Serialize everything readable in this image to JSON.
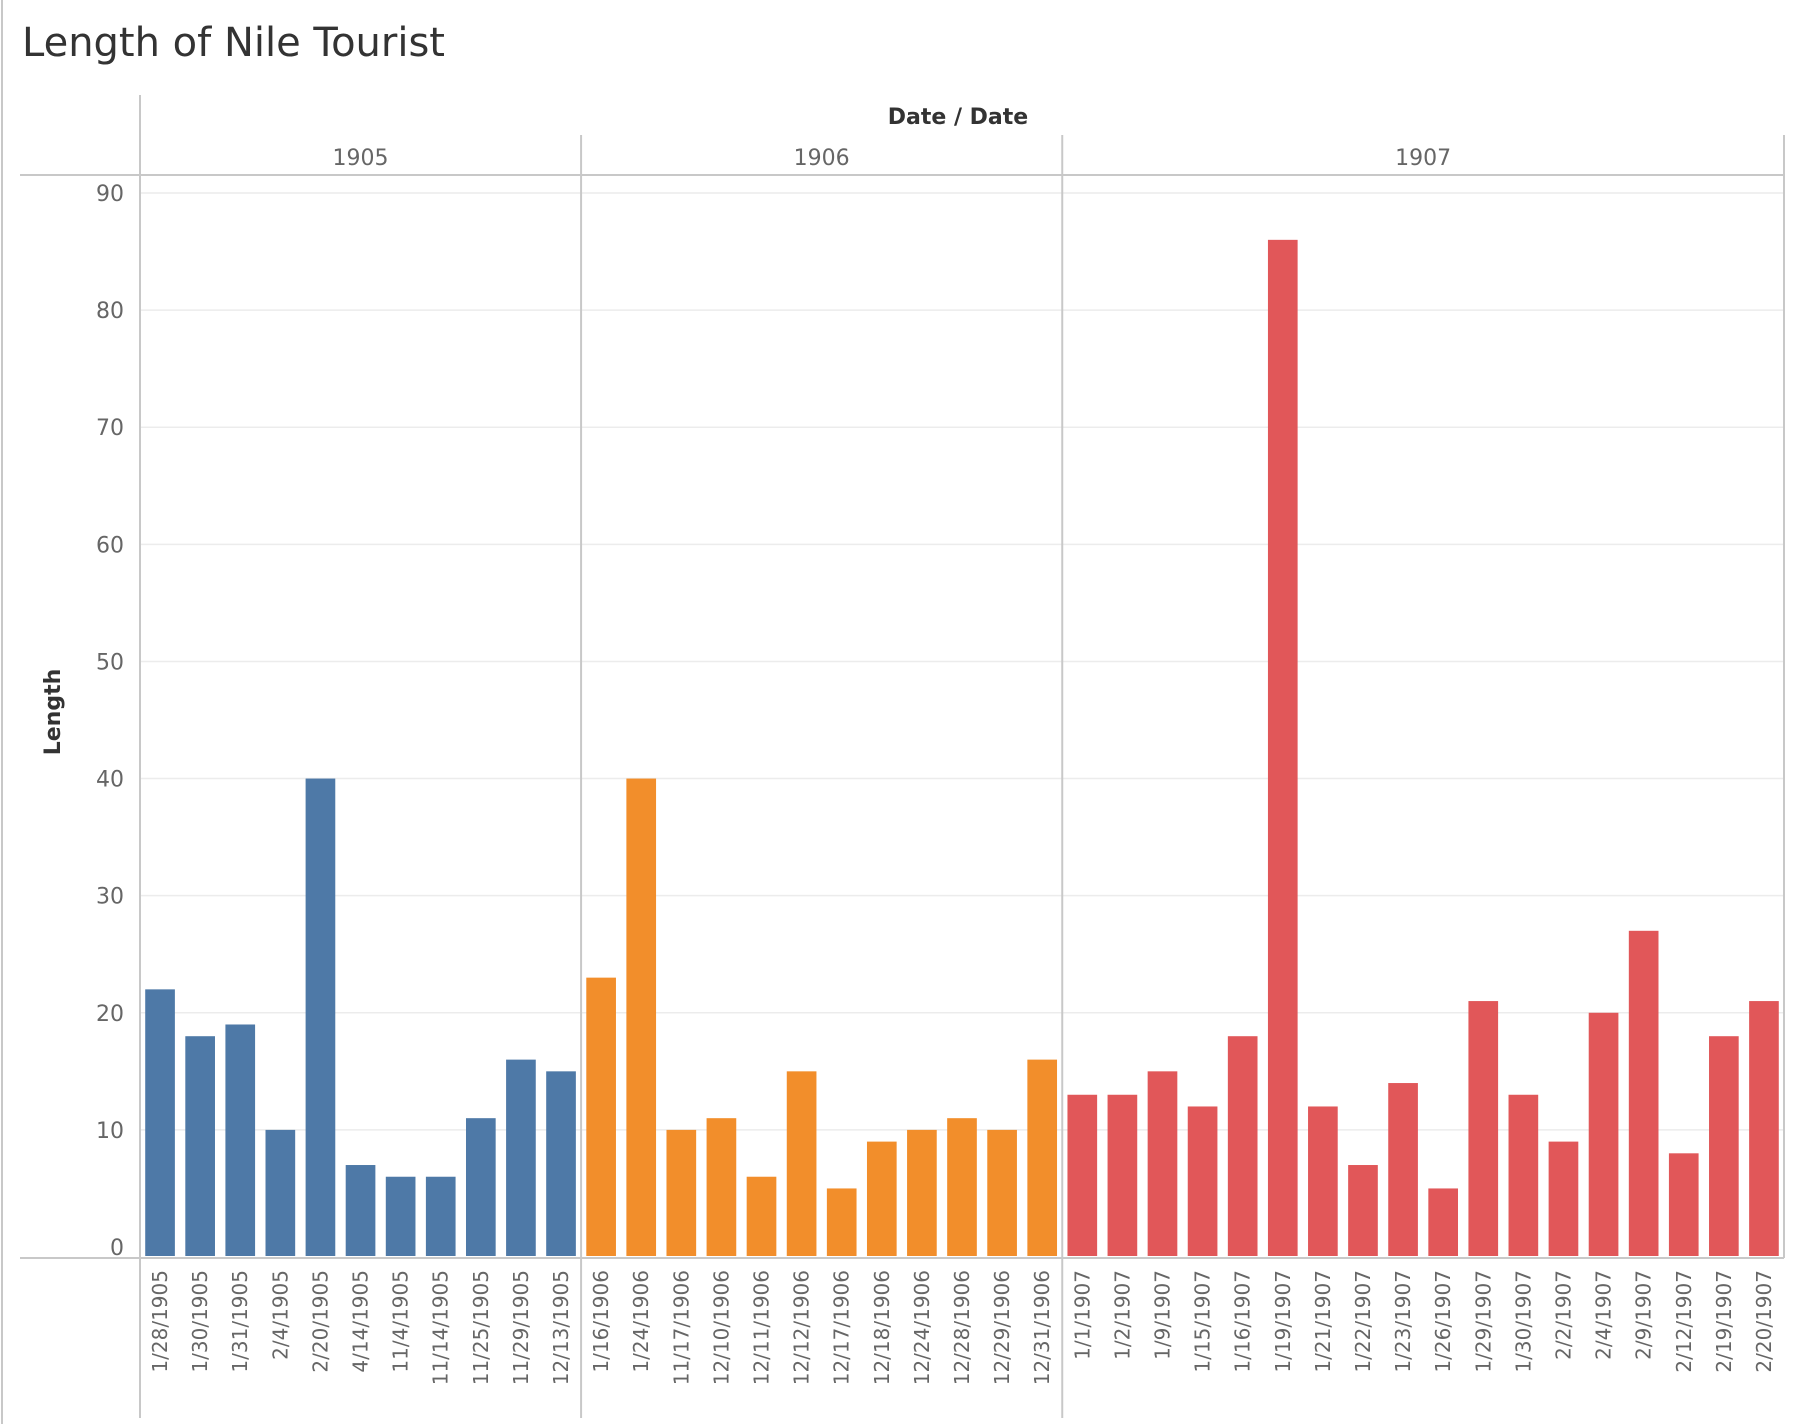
{
  "chart_data": {
    "type": "bar",
    "title": "Length of Nile Tourist",
    "column_header": "Date / Date",
    "ylabel": "Length",
    "ylim": [
      0,
      90
    ],
    "yticks": [
      0,
      10,
      20,
      30,
      40,
      50,
      60,
      70,
      80,
      90
    ],
    "grid": true,
    "panels": [
      {
        "year": "1905",
        "color": "#4e79a7",
        "categories": [
          "1/28/1905",
          "1/30/1905",
          "1/31/1905",
          "2/4/1905",
          "2/20/1905",
          "4/14/1905",
          "11/4/1905",
          "11/14/1905",
          "11/25/1905",
          "11/29/1905",
          "12/13/1905"
        ],
        "values": [
          22,
          18,
          19,
          10,
          40,
          7,
          6,
          6,
          11,
          16,
          15
        ]
      },
      {
        "year": "1906",
        "color": "#f28e2b",
        "categories": [
          "1/16/1906",
          "1/24/1906",
          "11/17/1906",
          "12/10/1906",
          "12/11/1906",
          "12/12/1906",
          "12/17/1906",
          "12/18/1906",
          "12/24/1906",
          "12/28/1906",
          "12/29/1906",
          "12/31/1906"
        ],
        "values": [
          23,
          40,
          10,
          11,
          6,
          15,
          5,
          9,
          10,
          11,
          10,
          16
        ]
      },
      {
        "year": "1907",
        "color": "#e15759",
        "categories": [
          "1/1/1907",
          "1/2/1907",
          "1/9/1907",
          "1/15/1907",
          "1/16/1907",
          "1/19/1907",
          "1/21/1907",
          "1/22/1907",
          "1/23/1907",
          "1/26/1907",
          "1/29/1907",
          "1/30/1907",
          "2/2/1907",
          "2/4/1907",
          "2/9/1907",
          "2/12/1907",
          "2/19/1907",
          "2/20/1907"
        ],
        "values": [
          13,
          13,
          15,
          12,
          18,
          86,
          12,
          7,
          14,
          5,
          21,
          13,
          9,
          20,
          27,
          8,
          18,
          21
        ]
      }
    ]
  }
}
